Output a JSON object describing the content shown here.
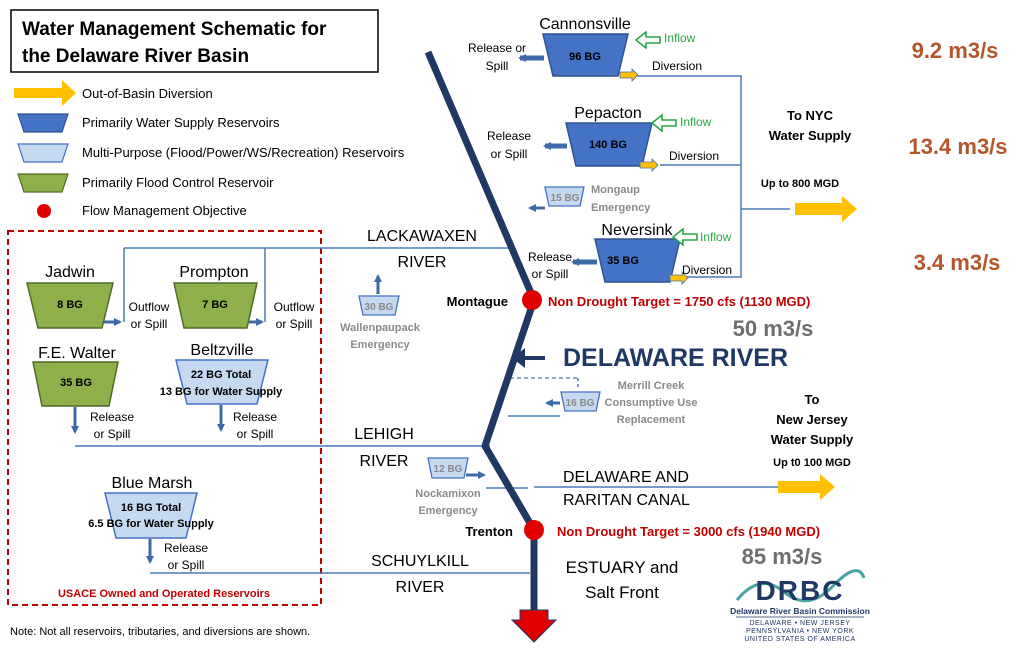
{
  "title": {
    "line1": "Water Management  Schematic for",
    "line2": "the Delaware River Basin"
  },
  "legend": {
    "diversion": "Out-of-Basin Diversion",
    "water_supply": "Primarily Water Supply Reservoirs",
    "multi_purpose": "Multi-Purpose (Flood/Power/WS/Recreation) Reservoirs",
    "flood_control": "Primarily Flood Control Reservoir",
    "objective": "Flow Management Objective"
  },
  "colors": {
    "dark_blue": "#4472c4",
    "light_blue": "#c5d9f1",
    "green": "#8db04a",
    "red": "#c00000",
    "gold": "#ffc000",
    "navy": "#1f3864",
    "line": "#4a7ab8",
    "brown": "#b5562a"
  },
  "reservoirs": {
    "cannonsville": {
      "name": "Cannonsville",
      "capacity": "96 BG"
    },
    "pepacton": {
      "name": "Pepacton",
      "capacity": "140 BG"
    },
    "mongaup": {
      "capacity": "15 BG",
      "name1": "Mongaup",
      "name2": "Emergency"
    },
    "neversink": {
      "name": "Neversink",
      "capacity": "35 BG"
    },
    "wallenpaupack": {
      "capacity": "30 BG",
      "name1": "Wallenpaupack",
      "name2": "Emergency"
    },
    "jadwin": {
      "name": "Jadwin",
      "capacity": "8 BG"
    },
    "prompton": {
      "name": "Prompton",
      "capacity": "7 BG"
    },
    "fe_walter": {
      "name": "F.E. Walter",
      "capacity": "35 BG"
    },
    "beltzville": {
      "name": "Beltzville",
      "line1": "22 BG Total",
      "line2": "13 BG for Water Supply"
    },
    "merrill_creek": {
      "capacity": "16 BG",
      "name1": "Merrill Creek",
      "name2": "Consumptive Use",
      "name3": "Replacement"
    },
    "nockamixon": {
      "capacity": "12 BG",
      "name1": "Nockamixon",
      "name2": "Emergency"
    },
    "blue_marsh": {
      "name": "Blue Marsh",
      "line1": "16 BG Total",
      "line2": "6.5 BG for Water Supply"
    }
  },
  "labels": {
    "inflow": "Inflow",
    "release_or": "Release or",
    "spill": "Spill",
    "release": "Release",
    "or_spill": "or Spill",
    "outflow": "Outflow",
    "diversion": "Diversion"
  },
  "nyc": {
    "line1": "To NYC",
    "line2": "Water Supply",
    "line3": "Up to 800 MGD"
  },
  "nj": {
    "line1": "To",
    "line2": "New Jersey",
    "line3": "Water Supply",
    "line4": "Up t0 100 MGD"
  },
  "flows": {
    "cannonsville": "9.2 m3/s",
    "pepacton": "13.4 m3/s",
    "neversink": "3.4 m3/s",
    "montague": "50 m3/s",
    "trenton": "85 m3/s"
  },
  "rivers": {
    "lackawaxen1": "LACKAWAXEN",
    "lackawaxen2": "RIVER",
    "delaware": "DELAWARE RIVER",
    "lehigh1": "LEHIGH",
    "lehigh2": "RIVER",
    "canal1": "DELAWARE AND",
    "canal2": "RARITAN CANAL",
    "schuylkill1": "SCHUYLKILL",
    "schuylkill2": "RIVER",
    "estuary1": "ESTUARY and",
    "estuary2": "Salt Front"
  },
  "targets": {
    "montague_name": "Montague",
    "montague_target": "Non Drought Target = 1750 cfs (1130 MGD)",
    "trenton_name": "Trenton",
    "trenton_target": "Non Drought Target = 3000 cfs (1940 MGD)"
  },
  "usace": "USACE Owned and Operated Reservoirs",
  "note": "Note:  Not all reservoirs, tributaries, and diversions are shown.",
  "drbc": {
    "logo_text": "DRBC",
    "name": "Delaware River Basin Commission",
    "states1": "DELAWARE  •  NEW JERSEY",
    "states2": "PENNSYLVANIA • NEW YORK",
    "states3": "UNITED STATES OF AMERICA"
  }
}
